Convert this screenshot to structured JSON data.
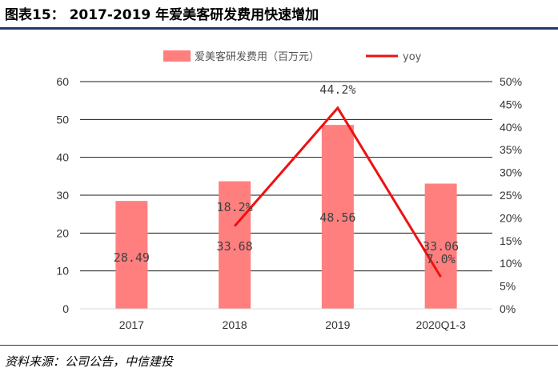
{
  "figure": {
    "title": "图表15： 2017-2019 年爱美客研发费用快速增加",
    "source": "资料来源：公司公告，中信建投"
  },
  "chart_data": {
    "type": "bar",
    "categories": [
      "2017",
      "2018",
      "2019",
      "2020Q1-3"
    ],
    "series": [
      {
        "name": "爱美客研发费用（百万元）",
        "type": "bar",
        "axis": "left",
        "color": "#ff7f7f",
        "values": [
          28.49,
          33.68,
          48.56,
          33.06
        ],
        "labels": [
          "28.49",
          "33.68",
          "48.56",
          "33.06"
        ]
      },
      {
        "name": "yoy",
        "type": "line",
        "axis": "right",
        "color": "#ee1111",
        "values": [
          null,
          18.2,
          44.2,
          7.0
        ],
        "labels": [
          "",
          "18.2%",
          "44.2%",
          "7.0%"
        ]
      }
    ],
    "y_left": {
      "ylim": [
        0,
        60
      ],
      "ticks": [
        "0",
        "10",
        "20",
        "30",
        "40",
        "50",
        "60"
      ]
    },
    "y_right": {
      "ylim": [
        0,
        50
      ],
      "ticks": [
        "0%",
        "5%",
        "10%",
        "15%",
        "20%",
        "25%",
        "30%",
        "35%",
        "40%",
        "45%",
        "50%"
      ]
    },
    "grid": true,
    "legend": "top-center"
  }
}
